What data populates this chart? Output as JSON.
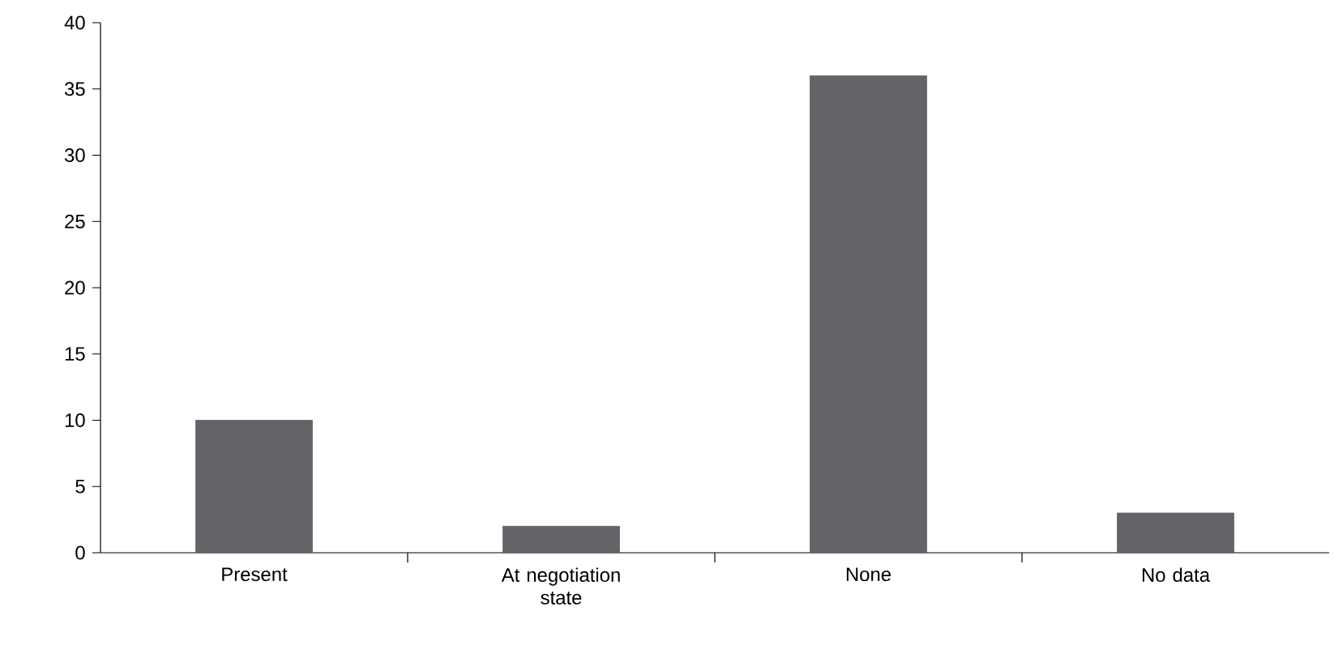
{
  "chart_data": {
    "type": "bar",
    "categories": [
      "Present",
      "At negotiation state",
      "None",
      "No data"
    ],
    "values": [
      10,
      2,
      36,
      3
    ],
    "color": "#646368",
    "ylim": [
      0,
      40
    ],
    "yticks": [
      0,
      5,
      10,
      15,
      20,
      25,
      30,
      35,
      40
    ]
  }
}
